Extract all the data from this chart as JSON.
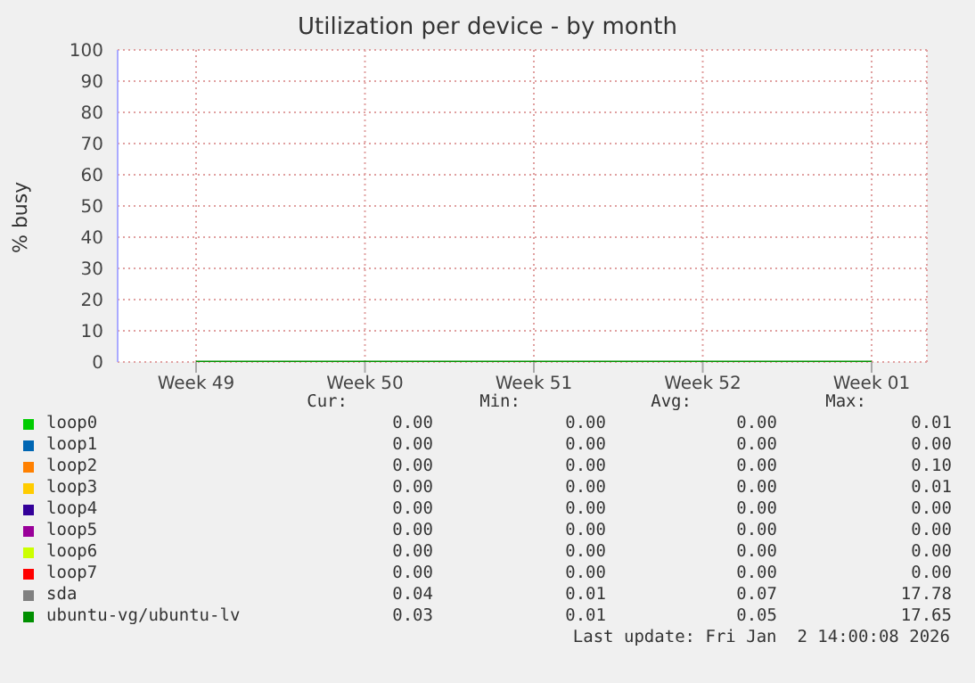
{
  "chart_data": {
    "type": "line",
    "title": "Utilization per device - by month",
    "ylabel": "% busy",
    "categories": [
      "Week 49",
      "Week 50",
      "Week 51",
      "Week 52",
      "Week 01"
    ],
    "series": [
      {
        "name": "loop0",
        "color": "#00cc00",
        "values": [
          null,
          null,
          null,
          null,
          null
        ]
      },
      {
        "name": "loop1",
        "color": "#0066b3",
        "values": [
          null,
          null,
          null,
          null,
          null
        ]
      },
      {
        "name": "loop2",
        "color": "#ff8000",
        "values": [
          null,
          null,
          null,
          null,
          null
        ]
      },
      {
        "name": "loop3",
        "color": "#ffcc00",
        "values": [
          null,
          null,
          null,
          null,
          null
        ]
      },
      {
        "name": "loop4",
        "color": "#330099",
        "values": [
          null,
          null,
          null,
          null,
          null
        ]
      },
      {
        "name": "loop5",
        "color": "#990099",
        "values": [
          null,
          null,
          null,
          null,
          null
        ]
      },
      {
        "name": "loop6",
        "color": "#ccff00",
        "values": [
          null,
          null,
          null,
          null,
          null
        ]
      },
      {
        "name": "loop7",
        "color": "#ff0000",
        "values": [
          null,
          null,
          null,
          null,
          null
        ]
      },
      {
        "name": "sda",
        "color": "#808080",
        "values": [
          null,
          null,
          null,
          null,
          null
        ]
      },
      {
        "name": "ubuntu-vg/ubuntu-lv",
        "color": "#008f00",
        "values": [
          0,
          0,
          0,
          0,
          0
        ]
      }
    ],
    "ylim": [
      0,
      100
    ],
    "yticks": [
      0,
      10,
      20,
      30,
      40,
      50,
      60,
      70,
      80,
      90,
      100
    ],
    "grid": true,
    "legend": "bottom",
    "marker": "none",
    "annotations": [
      "Cur:",
      "Min:",
      "Avg:",
      "Max:",
      "0.00",
      "0.00",
      "0.00",
      "0.01",
      "0.00",
      "0.00",
      "0.00",
      "0.00",
      "0.00",
      "0.00",
      "0.00",
      "0.10",
      "0.00",
      "0.00",
      "0.00",
      "0.01",
      "0.00",
      "0.00",
      "0.00",
      "0.00",
      "0.00",
      "0.00",
      "0.00",
      "0.00",
      "0.00",
      "0.00",
      "0.00",
      "0.00",
      "0.00",
      "0.00",
      "0.00",
      "0.00",
      "0.04",
      "0.01",
      "0.07",
      "17.78",
      "0.03",
      "0.01",
      "0.05",
      "17.65",
      "Last update: Fri Jan  2 14:00:08 2026"
    ]
  }
}
